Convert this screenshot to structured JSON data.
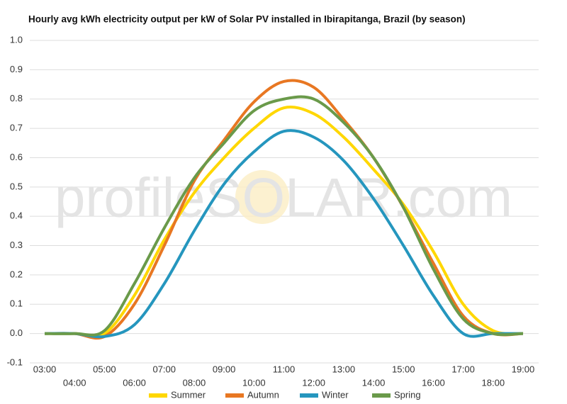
{
  "chart_data": {
    "type": "line",
    "title": "Hourly avg kWh electricity output per kW of Solar PV installed in Ibirapitanga, Brazil (by season)",
    "watermark": "profileSOLAR.com",
    "categories": [
      "03:00",
      "04:00",
      "05:00",
      "06:00",
      "07:00",
      "08:00",
      "09:00",
      "10:00",
      "11:00",
      "12:00",
      "13:00",
      "14:00",
      "15:00",
      "16:00",
      "17:00",
      "18:00",
      "19:00"
    ],
    "series": [
      {
        "name": "Summer",
        "color": "#ffd700",
        "values": [
          0,
          0,
          0,
          0.13,
          0.32,
          0.48,
          0.6,
          0.7,
          0.77,
          0.75,
          0.67,
          0.56,
          0.44,
          0.28,
          0.1,
          0.01,
          0
        ]
      },
      {
        "name": "Autumn",
        "color": "#e87722",
        "values": [
          0,
          0,
          -0.01,
          0.1,
          0.3,
          0.52,
          0.66,
          0.79,
          0.86,
          0.84,
          0.73,
          0.6,
          0.43,
          0.24,
          0.06,
          0,
          0
        ]
      },
      {
        "name": "Winter",
        "color": "#2596be",
        "values": [
          0,
          0,
          -0.01,
          0.03,
          0.17,
          0.35,
          0.51,
          0.62,
          0.69,
          0.67,
          0.59,
          0.46,
          0.3,
          0.13,
          0,
          0,
          0
        ]
      },
      {
        "name": "Spring",
        "color": "#6a9a4a",
        "values": [
          0,
          0,
          0.01,
          0.17,
          0.36,
          0.53,
          0.65,
          0.76,
          0.8,
          0.8,
          0.72,
          0.6,
          0.43,
          0.22,
          0.05,
          0,
          0
        ]
      }
    ],
    "ylim": [
      -0.1,
      1.0
    ],
    "yticks": [
      -0.1,
      {
        "value": 0,
        "label": "0.0"
      },
      0.1,
      0.2,
      0.3,
      0.4,
      0.5,
      0.6,
      0.7,
      0.8,
      0.9,
      {
        "value": 1,
        "label": "1.0"
      }
    ],
    "grid": true,
    "legend": "bottom"
  }
}
